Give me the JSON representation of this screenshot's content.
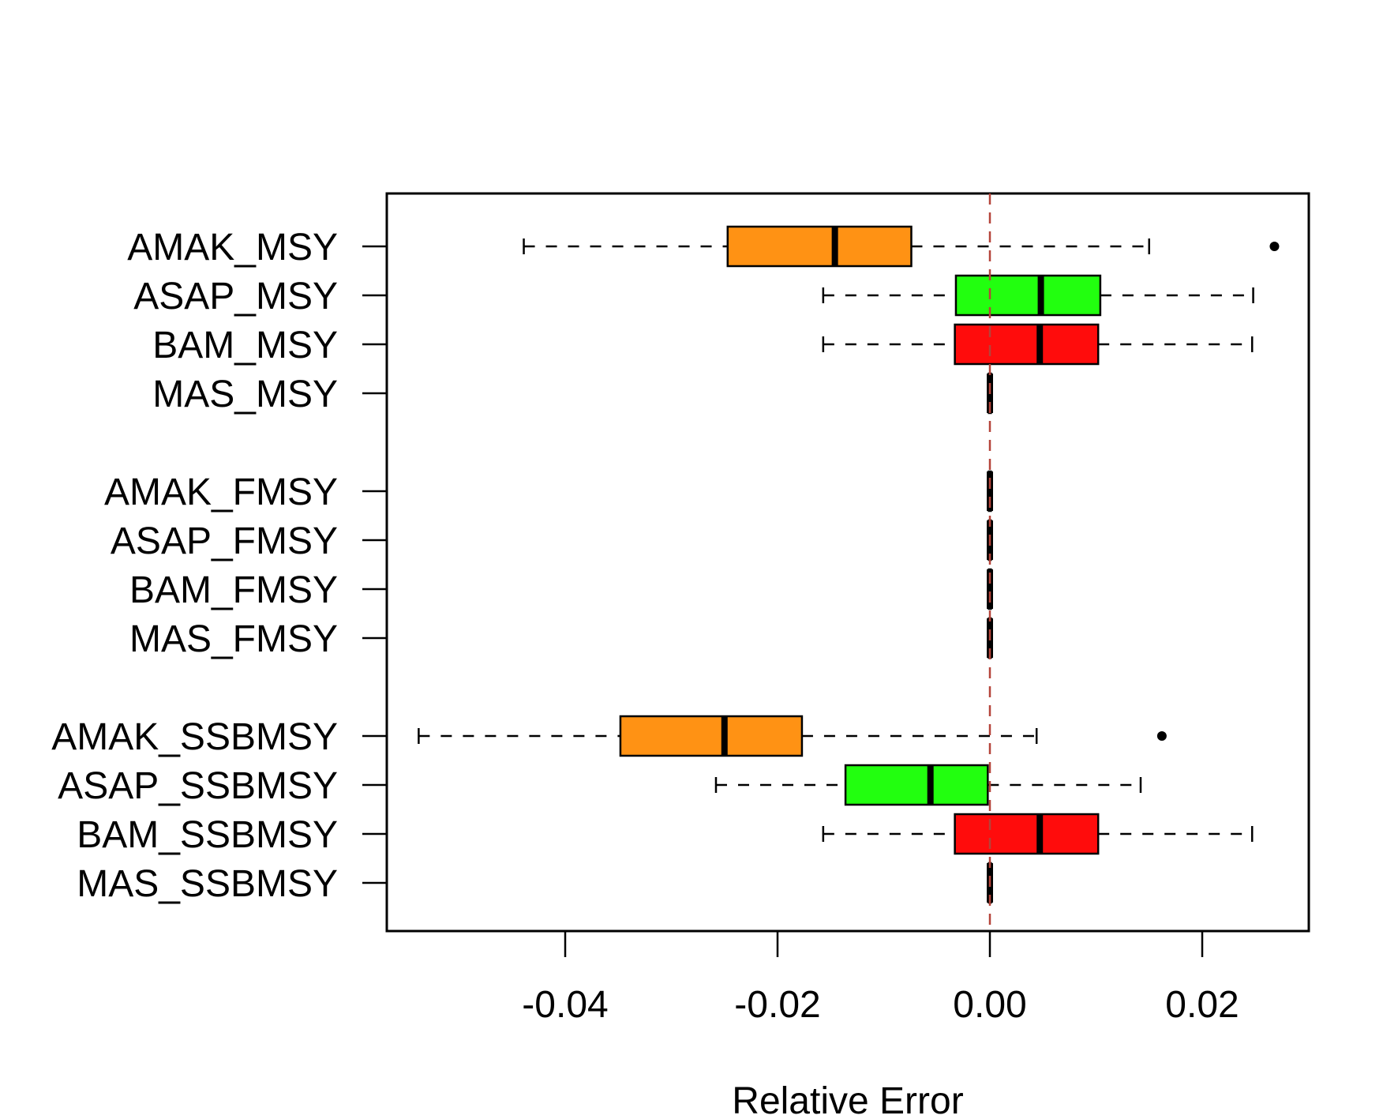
{
  "chart_data": {
    "type": "boxplot",
    "orientation": "horizontal",
    "xlabel": "Relative Error",
    "xlim": [
      -0.0555,
      0.03
    ],
    "x_ticks": [
      -0.04,
      -0.02,
      0.0,
      0.02
    ],
    "x_tick_labels": [
      "-0.04",
      "-0.02",
      "0.00",
      "0.02"
    ],
    "reference_line": {
      "x": 0.0,
      "style": "dashed",
      "color": "#b5443a"
    },
    "grid": false,
    "box_colors": {
      "AMAK": "#ff9214",
      "ASAP": "#22ff0f",
      "BAM": "#ff0c0c",
      "MAS": "#ff0c0c"
    },
    "groups": [
      {
        "name": "MSY",
        "boxes": [
          {
            "label": "AMAK_MSY",
            "model": "AMAK",
            "whisker_low": -0.0439,
            "q1": -0.0247,
            "median": -0.0146,
            "q3": -0.0074,
            "whisker_high": 0.015,
            "outliers": [
              0.0268
            ]
          },
          {
            "label": "ASAP_MSY",
            "model": "ASAP",
            "whisker_low": -0.0157,
            "q1": -0.0032,
            "median": 0.0048,
            "q3": 0.0104,
            "whisker_high": 0.0248,
            "outliers": []
          },
          {
            "label": "BAM_MSY",
            "model": "BAM",
            "whisker_low": -0.0157,
            "q1": -0.0033,
            "median": 0.0047,
            "q3": 0.0102,
            "whisker_high": 0.0247,
            "outliers": []
          },
          {
            "label": "MAS_MSY",
            "model": "MAS",
            "whisker_low": -0.0001,
            "q1": -0.0001,
            "median": 0.0,
            "q3": 0.0001,
            "whisker_high": 0.0001,
            "outliers": []
          }
        ]
      },
      {
        "name": "FMSY",
        "boxes": [
          {
            "label": "AMAK_FMSY",
            "model": "AMAK",
            "whisker_low": -0.0001,
            "q1": -0.0001,
            "median": 0.0,
            "q3": 0.0001,
            "whisker_high": 0.0001,
            "outliers": []
          },
          {
            "label": "ASAP_FMSY",
            "model": "ASAP",
            "whisker_low": -0.0001,
            "q1": -0.0001,
            "median": 0.0,
            "q3": 0.0001,
            "whisker_high": 0.0001,
            "outliers": []
          },
          {
            "label": "BAM_FMSY",
            "model": "BAM",
            "whisker_low": -0.0001,
            "q1": -0.0001,
            "median": 0.0,
            "q3": 0.0001,
            "whisker_high": 0.0001,
            "outliers": []
          },
          {
            "label": "MAS_FMSY",
            "model": "MAS",
            "whisker_low": -0.0001,
            "q1": -0.0001,
            "median": 0.0,
            "q3": 0.0001,
            "whisker_high": 0.0001,
            "outliers": []
          }
        ]
      },
      {
        "name": "SSBMSY",
        "boxes": [
          {
            "label": "AMAK_SSBMSY",
            "model": "AMAK",
            "whisker_low": -0.0538,
            "q1": -0.0348,
            "median": -0.025,
            "q3": -0.0177,
            "whisker_high": 0.0044,
            "outliers": [
              0.0162
            ]
          },
          {
            "label": "ASAP_SSBMSY",
            "model": "ASAP",
            "whisker_low": -0.0258,
            "q1": -0.0136,
            "median": -0.0056,
            "q3": -0.0002,
            "whisker_high": 0.0142,
            "outliers": []
          },
          {
            "label": "BAM_SSBMSY",
            "model": "BAM",
            "whisker_low": -0.0157,
            "q1": -0.0033,
            "median": 0.0047,
            "q3": 0.0102,
            "whisker_high": 0.0247,
            "outliers": []
          },
          {
            "label": "MAS_SSBMSY",
            "model": "MAS",
            "whisker_low": -0.0001,
            "q1": -0.0001,
            "median": 0.0,
            "q3": 0.0001,
            "whisker_high": 0.0001,
            "outliers": []
          }
        ]
      }
    ]
  }
}
